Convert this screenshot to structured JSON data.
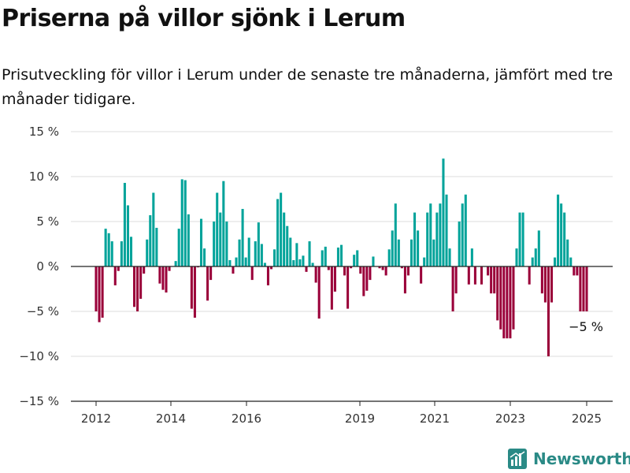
{
  "title": "Priserna på villor sjönk i Lerum",
  "subtitle": "Prisutveckling för villor i Lerum under de senaste tre månaderna, jämfört med tre månader tidigare.",
  "brand": "Newsworthy",
  "colors": {
    "positive": "#00a39a",
    "negative": "#9a0039",
    "grid": "#dddddd",
    "axis": "#222222",
    "logo": "#2a8a86"
  },
  "chart_data": {
    "type": "bar",
    "y_unit": "%",
    "ylim": [
      -15,
      15
    ],
    "yticks": [
      {
        "value": 15,
        "label": "15 %"
      },
      {
        "value": 10,
        "label": "10 %"
      },
      {
        "value": 5,
        "label": "5 %"
      },
      {
        "value": 0,
        "label": "0 %"
      },
      {
        "value": -5,
        "label": "−5 %"
      },
      {
        "value": -10,
        "label": "−10 %"
      },
      {
        "value": -15,
        "label": "−15 %"
      }
    ],
    "xticks": [
      "2012",
      "2014",
      "2016",
      "2019",
      "2021",
      "2023",
      "2025"
    ],
    "grid": true,
    "annotation": "−5 %",
    "values": [
      -5,
      -6.2,
      -5.7,
      4.2,
      3.7,
      2.8,
      -2.1,
      -0.5,
      2.8,
      9.3,
      6.8,
      3.3,
      -4.5,
      -5.0,
      -3.6,
      -0.8,
      3.0,
      5.7,
      8.2,
      4.3,
      -1.9,
      -2.6,
      -2.9,
      -0.5,
      0,
      0.6,
      4.2,
      9.7,
      9.6,
      5.8,
      -4.7,
      -5.7,
      -0.1,
      5.3,
      2.0,
      -3.8,
      -1.5,
      5.0,
      8.2,
      6.0,
      9.5,
      5.0,
      0.7,
      -0.8,
      1.0,
      3.0,
      6.4,
      1.0,
      3.2,
      -1.5,
      2.8,
      4.9,
      2.5,
      0.4,
      -2.1,
      -0.3,
      1.9,
      7.5,
      8.2,
      6.0,
      4.5,
      3.2,
      0.7,
      2.6,
      0.8,
      1.2,
      -0.6,
      2.8,
      0.4,
      -1.8,
      -5.8,
      1.8,
      2.2,
      -0.4,
      -4.8,
      -2.8,
      2.1,
      2.4,
      -1.0,
      -4.7,
      -0.2,
      1.3,
      1.8,
      -0.8,
      -3.3,
      -2.7,
      -1.5,
      1.1,
      0,
      -0.2,
      -0.4,
      -1.0,
      1.9,
      4.0,
      7.0,
      3.0,
      -0.2,
      -3.0,
      -1.0,
      3.0,
      6.0,
      4.0,
      -1.9,
      1.0,
      6.0,
      7.0,
      3.0,
      6.0,
      7.0,
      12.0,
      8.0,
      2.0,
      -5.0,
      -3.0,
      5.0,
      7.0,
      8.0,
      -2.0,
      2.0,
      -2.0,
      0,
      -2.0,
      0,
      -1.0,
      -3.0,
      -3.0,
      -6.0,
      -7.0,
      -8.0,
      -8.0,
      -8.0,
      -7.0,
      2.0,
      6.0,
      6.0,
      0,
      -2.0,
      1.0,
      2.0,
      4.0,
      -3.0,
      -4.0,
      -10.0,
      -4.0,
      1.0,
      8.0,
      7.0,
      6.0,
      3.0,
      1.0,
      -1.0,
      -1.0,
      -5.0,
      -5.0,
      -5.0
    ]
  }
}
